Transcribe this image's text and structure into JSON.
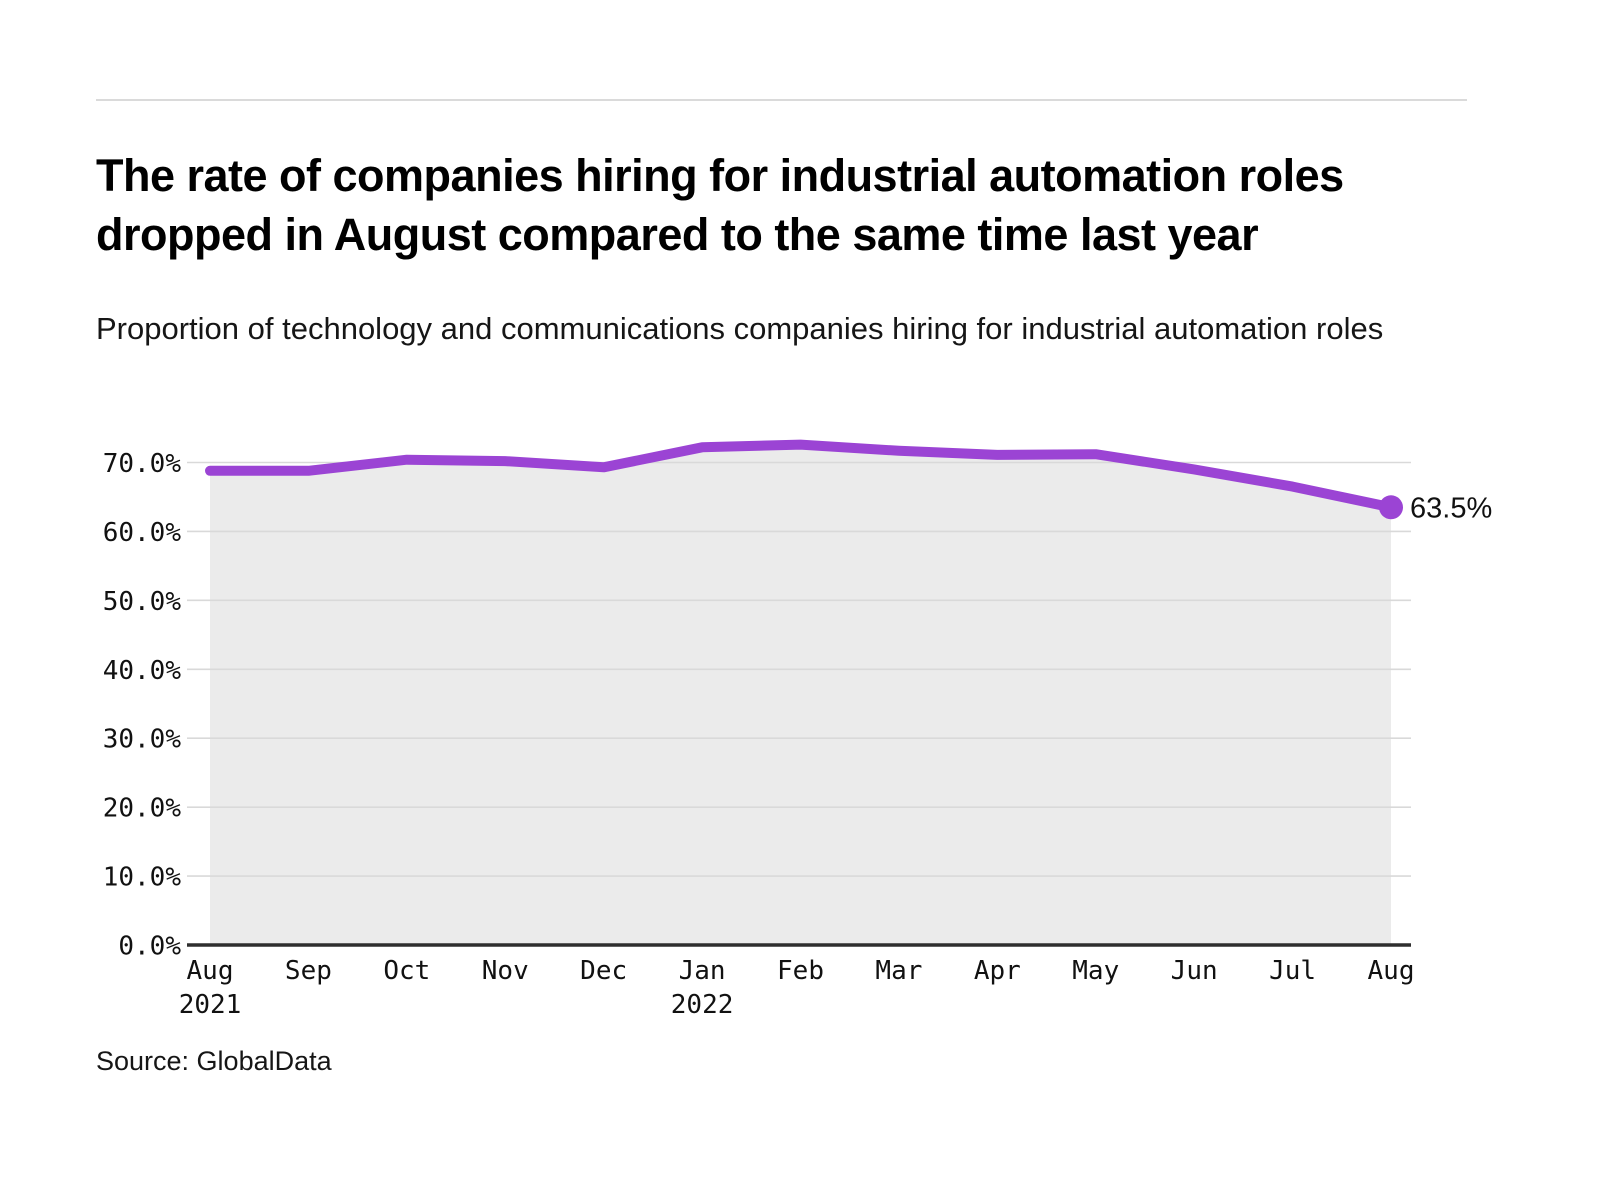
{
  "header": {
    "title": "The rate of companies hiring for industrial automation roles dropped in August compared to the same time last year",
    "subtitle": "Proportion of technology and communications companies hiring for industrial automation roles"
  },
  "footer": {
    "source": "Source: GlobalData"
  },
  "chart_data": {
    "type": "area",
    "title": "Proportion of technology and communications companies hiring for industrial automation roles",
    "categories": [
      {
        "month": "Aug",
        "year": "2021"
      },
      {
        "month": "Sep"
      },
      {
        "month": "Oct"
      },
      {
        "month": "Nov"
      },
      {
        "month": "Dec"
      },
      {
        "month": "Jan",
        "year": "2022"
      },
      {
        "month": "Feb"
      },
      {
        "month": "Mar"
      },
      {
        "month": "Apr"
      },
      {
        "month": "May"
      },
      {
        "month": "Jun"
      },
      {
        "month": "Jul"
      },
      {
        "month": "Aug"
      }
    ],
    "values": [
      68.8,
      68.8,
      70.4,
      70.2,
      69.3,
      72.2,
      72.6,
      71.7,
      71.1,
      71.2,
      69.0,
      66.5,
      63.5
    ],
    "end_label": "63.5%",
    "yticks": [
      0,
      10,
      20,
      30,
      40,
      50,
      60,
      70
    ],
    "ytick_labels": [
      "0.0%",
      "10.0%",
      "20.0%",
      "30.0%",
      "40.0%",
      "50.0%",
      "60.0%",
      "70.0%"
    ],
    "ylim": [
      0,
      75
    ],
    "grid": true,
    "legend": "none",
    "colors": {
      "line": "#9b44d4",
      "area_fill": "#ebebeb",
      "grid": "#d9d9d9",
      "axis": "#2e2e2e",
      "tick_text": "#111111",
      "end_label_text": "#111111"
    }
  }
}
